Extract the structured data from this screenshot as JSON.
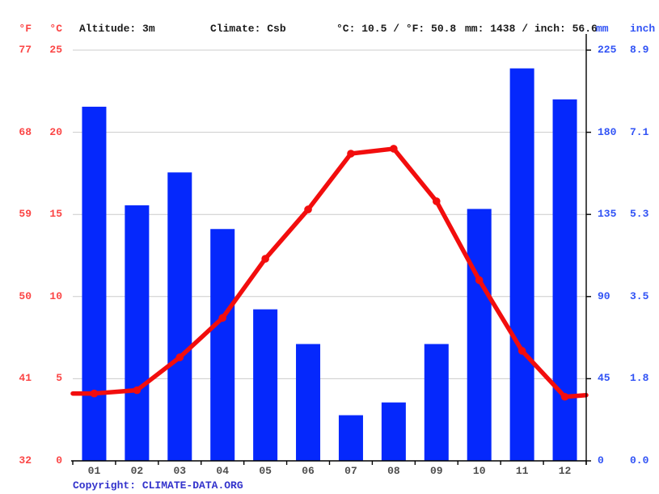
{
  "header": {
    "unit_f": "°F",
    "unit_c": "°C",
    "altitude": "Altitude: 3m",
    "climate": "Climate: Csb",
    "temp_summary": "°C: 10.5 / °F: 50.8",
    "precip_summary": "mm: 1438 / inch: 56.6",
    "unit_mm": "mm",
    "unit_inch": "inch"
  },
  "footer": {
    "copyright_label": "Copyright:",
    "link_text": "CLIMATE-DATA.ORG"
  },
  "colors": {
    "bar_blue": "#0528fc",
    "line_red": "#f20d0d",
    "red_label": "#fb4545",
    "blue_label": "#3153f5",
    "gridline": "#cccccc",
    "axis_black": "#000000",
    "month_gray": "#4d4d4d",
    "copyright_blue": "#3333cc"
  },
  "chart_data": {
    "type": "bar",
    "title": "Climate graph (climogram): monthly precipitation bars and temperature line",
    "categories": [
      "01",
      "02",
      "03",
      "04",
      "05",
      "06",
      "07",
      "08",
      "09",
      "10",
      "11",
      "12"
    ],
    "series": [
      {
        "name": "precipitation_mm",
        "type": "bar",
        "values": [
          194,
          140,
          158,
          127,
          83,
          64,
          25,
          32,
          64,
          138,
          215,
          198
        ]
      },
      {
        "name": "temperature_c",
        "type": "line",
        "values": [
          4.1,
          4.3,
          6.3,
          8.7,
          12.3,
          15.3,
          18.7,
          19.0,
          15.8,
          11.0,
          6.7,
          3.9
        ],
        "edge_left_c": 4.1,
        "edge_right_c": 4.0
      }
    ],
    "left_axis": {
      "f_ticks": [
        "77",
        "68",
        "59",
        "50",
        "41",
        "32"
      ],
      "c_ticks": [
        "25",
        "20",
        "15",
        "10",
        "5",
        "0"
      ],
      "c_values": [
        25,
        20,
        15,
        10,
        5,
        0
      ],
      "range_c": [
        0,
        25
      ]
    },
    "right_axis": {
      "mm_ticks": [
        "225",
        "180",
        "135",
        "90",
        "45",
        "0"
      ],
      "inch_ticks": [
        "8.9",
        "7.1",
        "5.3",
        "3.5",
        "1.8",
        "0.0"
      ],
      "mm_values": [
        225,
        180,
        135,
        90,
        45,
        0
      ],
      "range_mm": [
        0,
        225
      ]
    },
    "grid": true,
    "legend": "none"
  }
}
